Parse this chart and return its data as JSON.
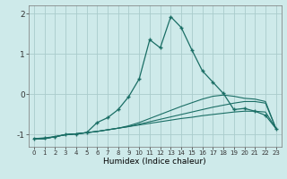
{
  "xlabel": "Humidex (Indice chaleur)",
  "background_color": "#ceeaea",
  "grid_color": "#aacccc",
  "line_color": "#1a6e65",
  "x_values": [
    0,
    1,
    2,
    3,
    4,
    5,
    6,
    7,
    8,
    9,
    10,
    11,
    12,
    13,
    14,
    15,
    16,
    17,
    18,
    19,
    20,
    21,
    22,
    23
  ],
  "series1": [
    -1.1,
    -1.1,
    -1.05,
    -1.0,
    -0.98,
    -0.95,
    -0.92,
    -0.88,
    -0.84,
    -0.8,
    -0.76,
    -0.72,
    -0.68,
    -0.64,
    -0.6,
    -0.57,
    -0.53,
    -0.5,
    -0.47,
    -0.44,
    -0.42,
    -0.42,
    -0.44,
    -0.85
  ],
  "series2": [
    -1.1,
    -1.1,
    -1.05,
    -1.0,
    -0.98,
    -0.95,
    -0.92,
    -0.88,
    -0.84,
    -0.8,
    -0.74,
    -0.68,
    -0.62,
    -0.56,
    -0.5,
    -0.44,
    -0.38,
    -0.32,
    -0.27,
    -0.22,
    -0.18,
    -0.18,
    -0.22,
    -0.85
  ],
  "series3": [
    -1.1,
    -1.1,
    -1.05,
    -1.0,
    -0.98,
    -0.95,
    -0.92,
    -0.88,
    -0.84,
    -0.78,
    -0.7,
    -0.6,
    -0.5,
    -0.4,
    -0.3,
    -0.21,
    -0.12,
    -0.05,
    -0.02,
    -0.05,
    -0.1,
    -0.12,
    -0.18,
    -0.85
  ],
  "series_main": [
    -1.1,
    -1.08,
    -1.05,
    -1.0,
    -0.98,
    -0.95,
    -0.7,
    -0.58,
    -0.38,
    -0.06,
    0.38,
    1.35,
    1.15,
    1.92,
    1.65,
    1.1,
    0.58,
    0.3,
    0.02,
    -0.38,
    -0.35,
    -0.42,
    -0.52,
    -0.85
  ],
  "ylim": [
    -1.3,
    2.2
  ],
  "yticks": [
    -1,
    0,
    1,
    2
  ],
  "xlim": [
    -0.5,
    23.5
  ]
}
